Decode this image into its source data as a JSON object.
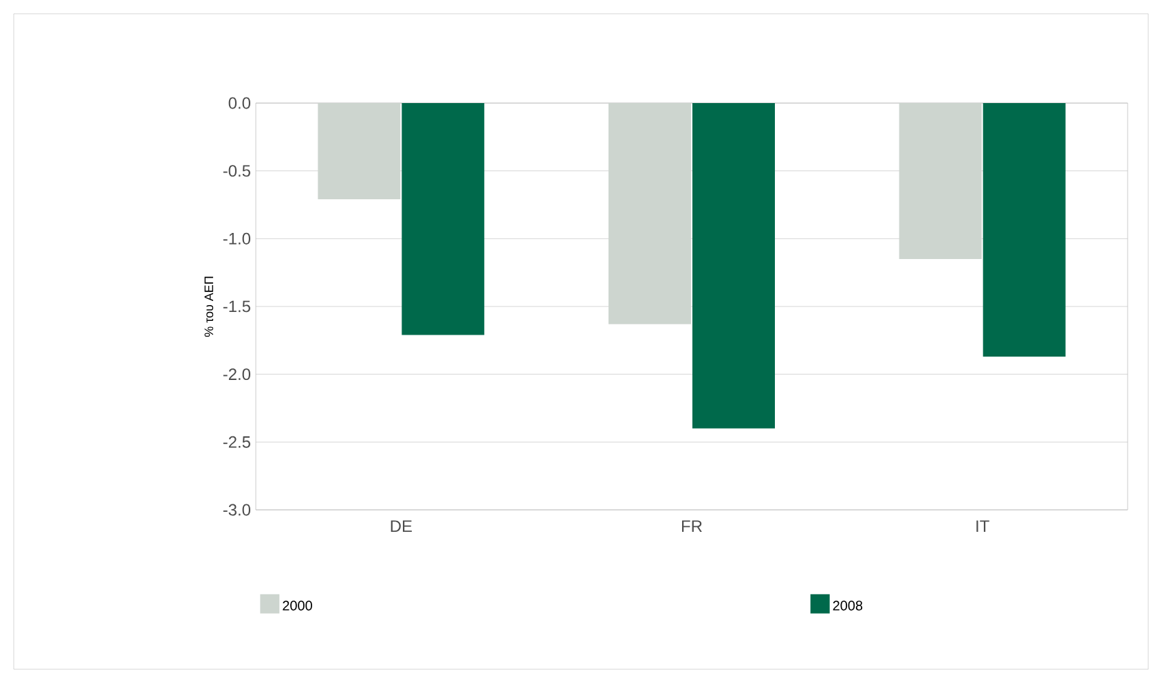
{
  "chart_data": {
    "type": "bar",
    "ylabel": "% του ΑΕΠ",
    "categories": [
      "DE",
      "FR",
      "IT"
    ],
    "series": [
      {
        "name": "2000",
        "color": "#cdd5cf",
        "values": [
          -0.71,
          -1.63,
          -1.15
        ]
      },
      {
        "name": "2008",
        "color": "#00694b",
        "values": [
          -1.71,
          -2.4,
          -1.87
        ]
      }
    ],
    "ylim": [
      -3.0,
      0.0
    ],
    "yticks": [
      {
        "value": 0,
        "label": "0.0"
      },
      {
        "value": -0.5,
        "label": "-0.5"
      },
      {
        "value": -1,
        "label": "-1.0"
      },
      {
        "value": -1.5,
        "label": "-1.5"
      },
      {
        "value": -2,
        "label": "-2.0"
      },
      {
        "value": -2.5,
        "label": "-2.5"
      },
      {
        "value": -3,
        "label": "-3.0"
      }
    ],
    "grid": "y",
    "legend": "bottom"
  }
}
